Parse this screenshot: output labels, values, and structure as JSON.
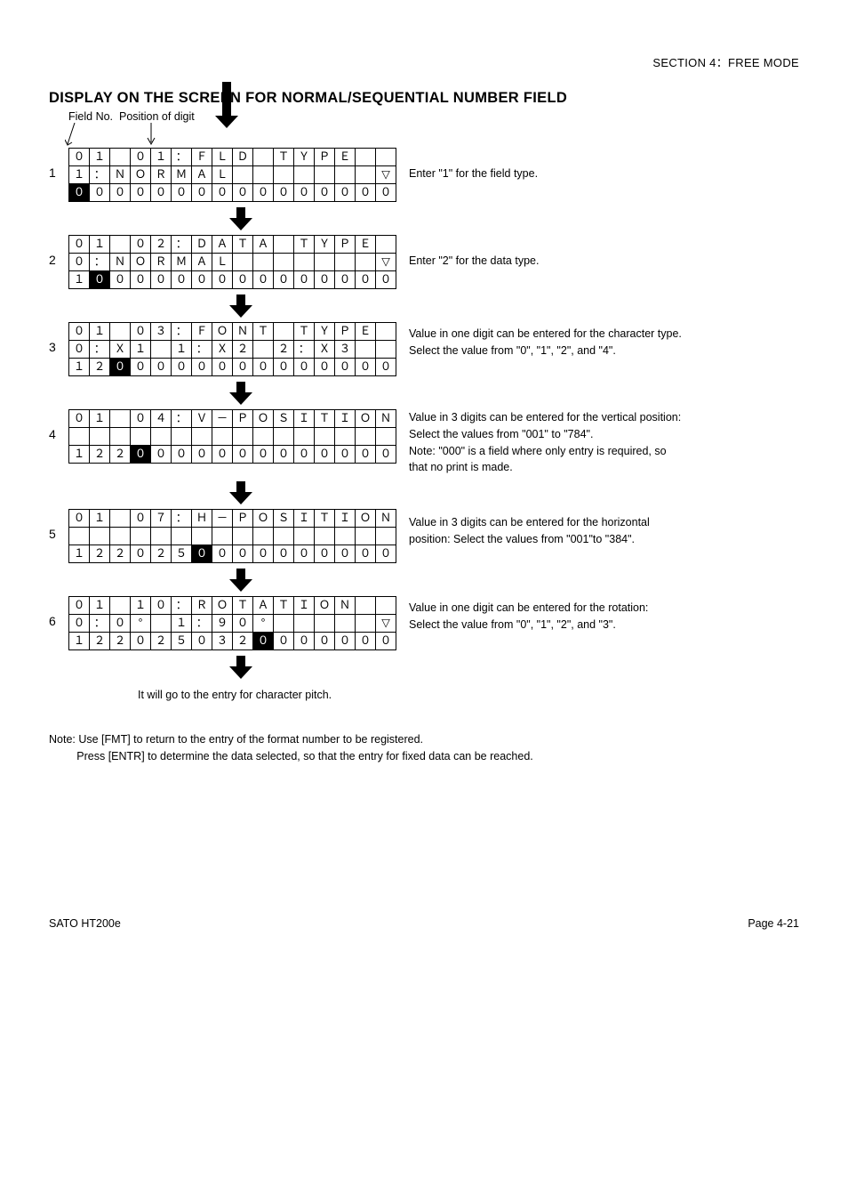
{
  "section_header": "SECTION 4：FREE MODE",
  "main_title": "DISPLAY ON THE SCREEN FOR NORMAL/SEQUENTIAL NUMBER FIELD",
  "header_label_1": "Field No.",
  "header_label_2": "Position of digit",
  "blocks": [
    {
      "num": "1",
      "rows": [
        [
          "０",
          "１",
          "",
          "０",
          "１",
          "：",
          "Ｆ",
          "Ｌ",
          "Ｄ",
          "",
          "Ｔ",
          "Ｙ",
          "Ｐ",
          "Ｅ",
          "",
          ""
        ],
        [
          "１",
          "：",
          "Ｎ",
          "Ｏ",
          "Ｒ",
          "Ｍ",
          "Ａ",
          "Ｌ",
          "",
          "",
          "",
          "",
          "",
          "",
          "",
          "▽"
        ],
        [
          "０",
          "０",
          "０",
          "０",
          "０",
          "０",
          "０",
          "０",
          "０",
          "０",
          "０",
          "０",
          "０",
          "０",
          "０",
          "０"
        ]
      ],
      "black": [
        [
          2,
          0
        ]
      ],
      "desc": [
        "Enter \"1\" for the field type."
      ]
    },
    {
      "num": "2",
      "rows": [
        [
          "０",
          "１",
          "",
          "０",
          "２",
          "：",
          "Ｄ",
          "Ａ",
          "Ｔ",
          "Ａ",
          "",
          "Ｔ",
          "Ｙ",
          "Ｐ",
          "Ｅ",
          ""
        ],
        [
          "０",
          "：",
          "Ｎ",
          "Ｏ",
          "Ｒ",
          "Ｍ",
          "Ａ",
          "Ｌ",
          "",
          "",
          "",
          "",
          "",
          "",
          "",
          "▽"
        ],
        [
          "１",
          "０",
          "０",
          "０",
          "０",
          "０",
          "０",
          "０",
          "０",
          "０",
          "０",
          "０",
          "０",
          "０",
          "０",
          "０"
        ]
      ],
      "black": [
        [
          2,
          1
        ]
      ],
      "desc": [
        "Enter \"2\" for the data type."
      ]
    },
    {
      "num": "3",
      "rows": [
        [
          "０",
          "１",
          "",
          "０",
          "３",
          "：",
          "Ｆ",
          "Ｏ",
          "Ｎ",
          "Ｔ",
          "",
          "Ｔ",
          "Ｙ",
          "Ｐ",
          "Ｅ",
          ""
        ],
        [
          "０",
          "：",
          "Ｘ",
          "１",
          "",
          "１",
          "：",
          "Ｘ",
          "２",
          "",
          "２",
          "：",
          "Ｘ",
          "３",
          "",
          ""
        ],
        [
          "１",
          "２",
          "０",
          "０",
          "０",
          "０",
          "０",
          "０",
          "０",
          "０",
          "０",
          "０",
          "０",
          "０",
          "０",
          "０"
        ]
      ],
      "black": [
        [
          2,
          2
        ]
      ],
      "desc": [
        "Value in one digit can be entered for the character type.",
        "Select the value from \"0\", \"1\", \"2\", and \"4\"."
      ]
    },
    {
      "num": "4",
      "rows": [
        [
          "０",
          "１",
          "",
          "０",
          "４",
          "：",
          "Ｖ",
          "－",
          "Ｐ",
          "Ｏ",
          "Ｓ",
          "Ｉ",
          "Ｔ",
          "Ｉ",
          "Ｏ",
          "Ｎ"
        ],
        [
          "",
          "",
          "",
          "",
          "",
          "",
          "",
          "",
          "",
          "",
          "",
          "",
          "",
          "",
          "",
          ""
        ],
        [
          "１",
          "２",
          "２",
          "０",
          "０",
          "０",
          "０",
          "０",
          "０",
          "０",
          "０",
          "０",
          "０",
          "０",
          "０",
          "０"
        ]
      ],
      "black": [
        [
          2,
          3
        ]
      ],
      "desc": [
        "Value in 3 digits can be entered for the vertical position:",
        "Select the values from \"001\" to \"784\".",
        "Note: \"000\" is a field where only entry is required, so",
        "          that no print is made."
      ]
    },
    {
      "num": "5",
      "rows": [
        [
          "０",
          "１",
          "",
          "０",
          "７",
          "：",
          "Ｈ",
          "－",
          "Ｐ",
          "Ｏ",
          "Ｓ",
          "Ｉ",
          "Ｔ",
          "Ｉ",
          "Ｏ",
          "Ｎ"
        ],
        [
          "",
          "",
          "",
          "",
          "",
          "",
          "",
          "",
          "",
          "",
          "",
          "",
          "",
          "",
          "",
          ""
        ],
        [
          "１",
          "２",
          "２",
          "０",
          "２",
          "５",
          "０",
          "０",
          "０",
          "０",
          "０",
          "０",
          "０",
          "０",
          "０",
          "０"
        ]
      ],
      "black": [
        [
          2,
          6
        ]
      ],
      "desc": [
        "Value in 3 digits can be entered for the horizontal",
        "position: Select the values from \"001\"to \"384\"."
      ]
    },
    {
      "num": "6",
      "rows": [
        [
          "０",
          "１",
          "",
          "１",
          "０",
          "：",
          "Ｒ",
          "Ｏ",
          "Ｔ",
          "Ａ",
          "Ｔ",
          "Ｉ",
          "Ｏ",
          "Ｎ",
          "",
          ""
        ],
        [
          "０",
          "：",
          "０",
          "°",
          "",
          "１",
          "：",
          "９",
          "０",
          "°",
          "",
          "",
          "",
          "",
          "",
          "▽"
        ],
        [
          "１",
          "２",
          "２",
          "０",
          "２",
          "５",
          "０",
          "３",
          "２",
          "０",
          "０",
          "０",
          "０",
          "０",
          "０",
          "０"
        ]
      ],
      "black": [
        [
          2,
          9
        ]
      ],
      "desc": [
        "Value in one digit can be entered for the rotation:",
        "Select the value from \"0\", \"1\", \"2\", and \"3\"."
      ]
    }
  ],
  "pitch_note": "It will go to the entry for character pitch.",
  "footer_note_1": "Note: Use [FMT] to return to the entry of the format number to be registered.",
  "footer_note_2": "Press [ENTR] to determine the data selected, so that the entry for fixed data can be reached.",
  "footer_left": "SATO HT200e",
  "footer_right": "Page 4-21",
  "colors": {
    "black": "#000000",
    "white": "#ffffff"
  }
}
